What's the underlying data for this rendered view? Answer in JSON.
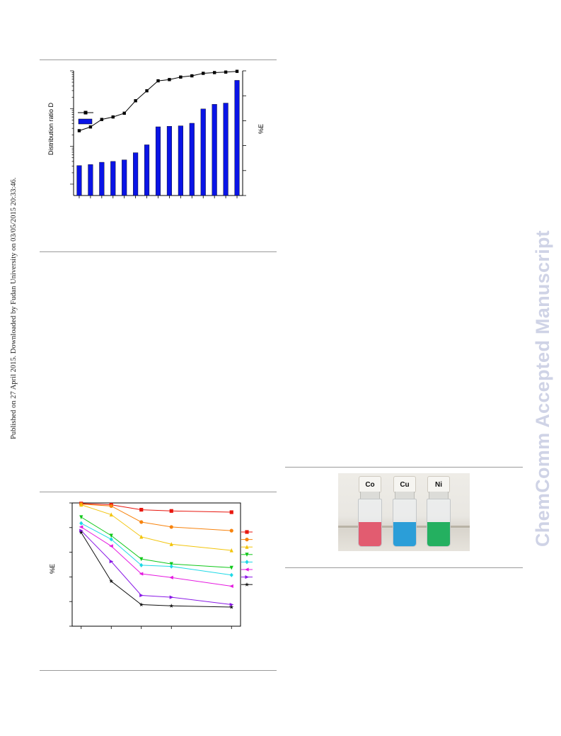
{
  "side_note": "Published on 27 April 2015. Downloaded by Fudan University on 03/05/2015 20:33:46.",
  "watermark": "ChemComm Accepted Manuscript",
  "figure1": {
    "ylabel_left": "Distribution ratio D",
    "ylabel_right": "%E",
    "legend_line_color": "#000000",
    "legend_bar_color": "#0a14e6"
  },
  "figure2": {
    "ylabel": "%E",
    "legend_colors": [
      "#e8170f",
      "#f7830e",
      "#f2c40a",
      "#10c81a",
      "#1fd9e6",
      "#e51ae0",
      "#8a1ae6",
      "#111111"
    ]
  },
  "figure3": {
    "vials": [
      {
        "label": "Co",
        "color": "#e25c70"
      },
      {
        "label": "Cu",
        "color": "#2b9ed8"
      },
      {
        "label": "Ni",
        "color": "#24b060"
      }
    ]
  },
  "chart_data": [
    {
      "type": "bar",
      "ylabel": "Distribution ratio D",
      "y2label": "%E",
      "yscale": "log",
      "grid": false,
      "legend_placement": "upper-left",
      "series": [
        {
          "values": [
            0.031,
            0.033,
            0.038,
            0.04,
            0.044,
            0.068,
            0.11,
            0.33,
            0.34,
            0.35,
            0.41,
            0.98,
            1.3,
            1.4,
            5.6
          ]
        },
        {
          "values": [
            76,
            77.5,
            80.5,
            81.5,
            83,
            88,
            92,
            96,
            96.5,
            97.5,
            98,
            99,
            99.3,
            99.5,
            99.8
          ]
        }
      ],
      "ylim": [
        0.005,
        10
      ],
      "y2lim": [
        50,
        100
      ]
    },
    {
      "type": "line",
      "ylabel": "%E",
      "x": [
        0,
        1,
        2,
        3,
        5
      ],
      "xlim": [
        -0.3,
        5.3
      ],
      "ylim": [
        0,
        100
      ],
      "legend_placement": "right",
      "series": [
        {
          "values": [
            99.5,
            98.5,
            94.5,
            93.5,
            92.5
          ]
        },
        {
          "values": [
            99,
            97.5,
            84.5,
            80.5,
            77.5
          ]
        },
        {
          "values": [
            98.5,
            90.5,
            72.5,
            66.5,
            61.5
          ]
        },
        {
          "values": [
            88.5,
            73.5,
            54.5,
            50.5,
            47.5
          ]
        },
        {
          "values": [
            83.5,
            70.5,
            49.5,
            48.5,
            41.5
          ]
        },
        {
          "values": [
            80.5,
            65,
            42.5,
            39.5,
            32.5
          ]
        },
        {
          "values": [
            77.5,
            52.5,
            25,
            23.5,
            17.5
          ]
        },
        {
          "values": [
            76,
            36.5,
            17.5,
            16.5,
            15.5
          ]
        }
      ]
    }
  ]
}
